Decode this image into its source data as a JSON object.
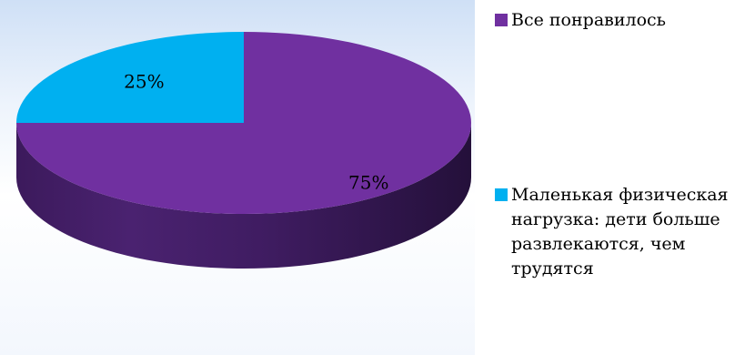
{
  "chart_data": {
    "type": "pie",
    "style": "3d",
    "title": "",
    "series": [
      {
        "values": [
          75,
          25
        ],
        "labels": [
          "75%",
          "25%"
        ]
      }
    ],
    "categories": [
      "Все понравилось",
      "Маленькая физическая нагрузка: дети больше развлекаются, чем трудятся"
    ],
    "colors": [
      "#7030a0",
      "#00b0f0"
    ],
    "legend": {
      "position": "right",
      "items": [
        {
          "label": "Все понравилось",
          "color": "#7030a0"
        },
        {
          "label": "Маленькая физическая нагрузка: дети больше развлекаются, чем трудятся",
          "color": "#00b0f0"
        }
      ]
    }
  }
}
